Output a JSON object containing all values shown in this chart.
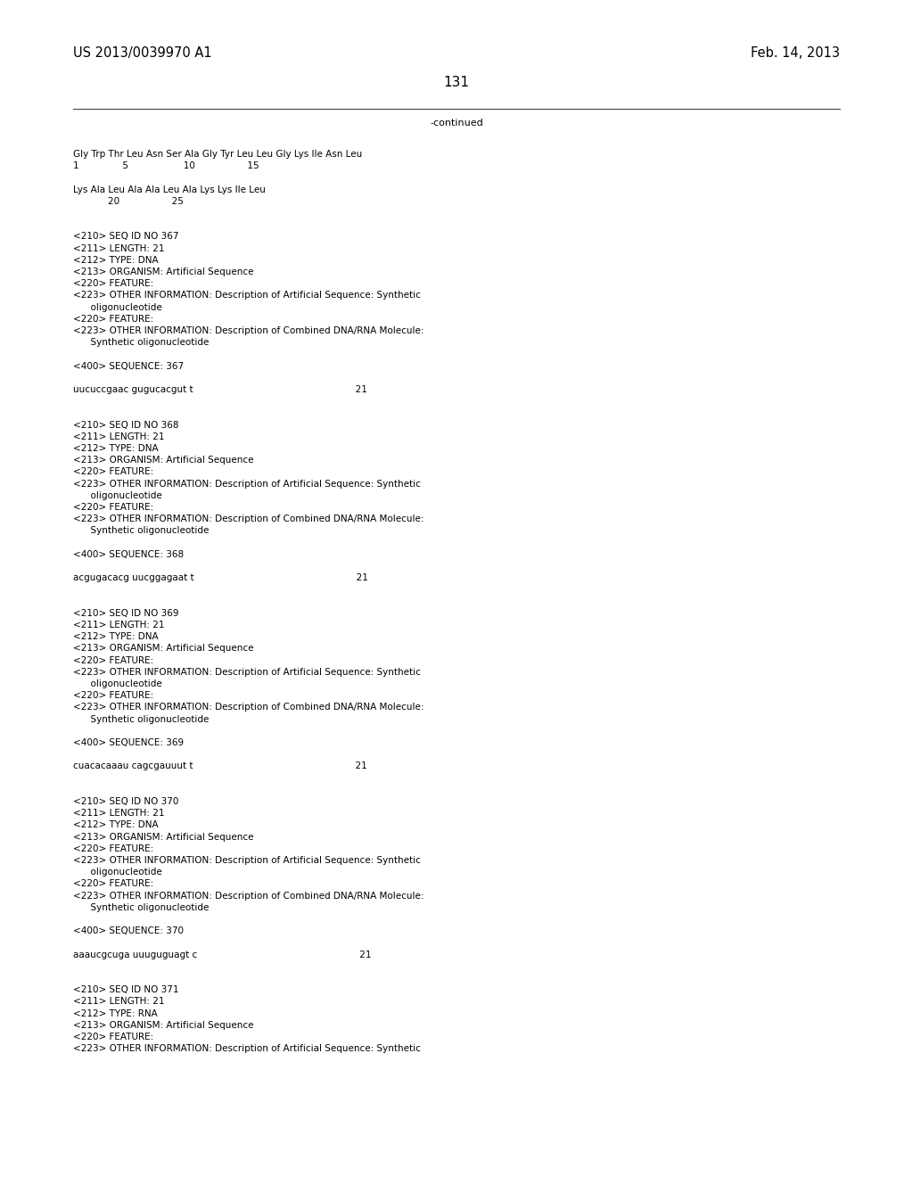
{
  "background_color": "#ffffff",
  "header_left": "US 2013/0039970 A1",
  "header_right": "Feb. 14, 2013",
  "page_number": "131",
  "continued_label": "-continued",
  "header_font_size": 10.5,
  "page_num_font_size": 11,
  "content_font_size": 7.5,
  "text_color": "#000000",
  "content_lines": [
    "Gly Trp Thr Leu Asn Ser Ala Gly Tyr Leu Leu Gly Lys Ile Asn Leu",
    "1               5                   10                  15",
    "",
    "Lys Ala Leu Ala Ala Leu Ala Lys Lys Ile Leu",
    "            20                  25",
    "",
    "",
    "<210> SEQ ID NO 367",
    "<211> LENGTH: 21",
    "<212> TYPE: DNA",
    "<213> ORGANISM: Artificial Sequence",
    "<220> FEATURE:",
    "<223> OTHER INFORMATION: Description of Artificial Sequence: Synthetic",
    "      oligonucleotide",
    "<220> FEATURE:",
    "<223> OTHER INFORMATION: Description of Combined DNA/RNA Molecule:",
    "      Synthetic oligonucleotide",
    "",
    "<400> SEQUENCE: 367",
    "",
    "uucuccgaac gugucacgut t                                                        21",
    "",
    "",
    "<210> SEQ ID NO 368",
    "<211> LENGTH: 21",
    "<212> TYPE: DNA",
    "<213> ORGANISM: Artificial Sequence",
    "<220> FEATURE:",
    "<223> OTHER INFORMATION: Description of Artificial Sequence: Synthetic",
    "      oligonucleotide",
    "<220> FEATURE:",
    "<223> OTHER INFORMATION: Description of Combined DNA/RNA Molecule:",
    "      Synthetic oligonucleotide",
    "",
    "<400> SEQUENCE: 368",
    "",
    "acgugacacg uucggagaat t                                                        21",
    "",
    "",
    "<210> SEQ ID NO 369",
    "<211> LENGTH: 21",
    "<212> TYPE: DNA",
    "<213> ORGANISM: Artificial Sequence",
    "<220> FEATURE:",
    "<223> OTHER INFORMATION: Description of Artificial Sequence: Synthetic",
    "      oligonucleotide",
    "<220> FEATURE:",
    "<223> OTHER INFORMATION: Description of Combined DNA/RNA Molecule:",
    "      Synthetic oligonucleotide",
    "",
    "<400> SEQUENCE: 369",
    "",
    "cuacacaaau cagcgauuut t                                                        21",
    "",
    "",
    "<210> SEQ ID NO 370",
    "<211> LENGTH: 21",
    "<212> TYPE: DNA",
    "<213> ORGANISM: Artificial Sequence",
    "<220> FEATURE:",
    "<223> OTHER INFORMATION: Description of Artificial Sequence: Synthetic",
    "      oligonucleotide",
    "<220> FEATURE:",
    "<223> OTHER INFORMATION: Description of Combined DNA/RNA Molecule:",
    "      Synthetic oligonucleotide",
    "",
    "<400> SEQUENCE: 370",
    "",
    "aaaucgcuga uuuguguagt c                                                        21",
    "",
    "",
    "<210> SEQ ID NO 371",
    "<211> LENGTH: 21",
    "<212> TYPE: RNA",
    "<213> ORGANISM: Artificial Sequence",
    "<220> FEATURE:",
    "<223> OTHER INFORMATION: Description of Artificial Sequence: Synthetic"
  ]
}
